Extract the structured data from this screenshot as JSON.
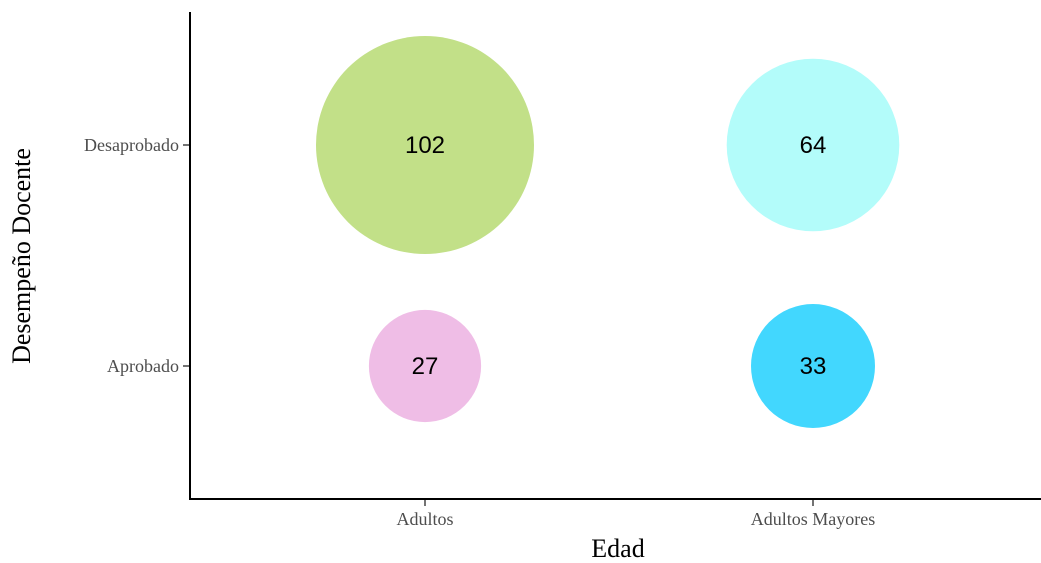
{
  "chart_data": {
    "type": "scatter",
    "xlabel": "Edad",
    "ylabel": "Desempeño Docente",
    "x_categories": [
      "Adultos",
      "Adultos Mayores"
    ],
    "y_categories": [
      "Aprobado",
      "Desaprobado"
    ],
    "grid": false,
    "legend": "none",
    "points": [
      {
        "x": "Adultos",
        "y": "Desaprobado",
        "value": 102,
        "color": "#C2E088"
      },
      {
        "x": "Adultos Mayores",
        "y": "Desaprobado",
        "value": 64,
        "color": "#B3FCFA"
      },
      {
        "x": "Adultos",
        "y": "Aprobado",
        "value": 27,
        "color": "#EFBDE6"
      },
      {
        "x": "Adultos Mayores",
        "y": "Aprobado",
        "value": 33,
        "color": "#42D7FE"
      }
    ]
  }
}
